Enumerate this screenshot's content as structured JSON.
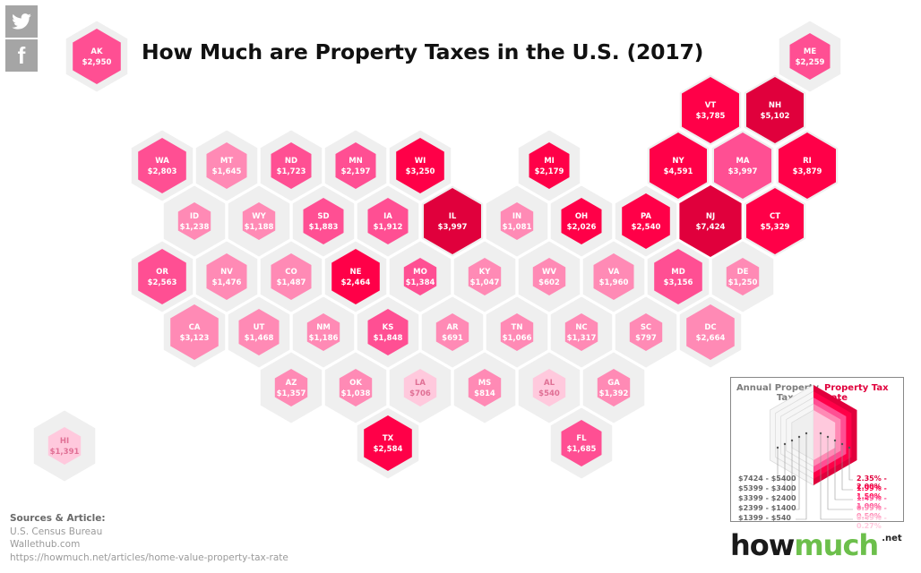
{
  "title": "How Much are Property Taxes in the U.S. (2017)",
  "social": {
    "twitter_icon": "twitter-icon",
    "facebook_icon": "facebook-icon",
    "facebook_glyph": "f"
  },
  "colors": {
    "rate_2.35_2.00": "#e0003c",
    "rate_1.99_1.50": "#ff0048",
    "rate_1.49_1.00": "#ff4f93",
    "rate_0.99_0.50": "#ff8ab5",
    "rate_0.49_0.27": "#ffc9dd",
    "cell_background": "#efefef",
    "label_light": "#ffffff",
    "label_dark": "#e07095"
  },
  "chart_data": {
    "type": "heatmap",
    "title": "How Much are Property Taxes in the U.S. (2017)",
    "description": "Hexagonal tile map; color encodes property tax rate group, inner hexagon size encodes annual property tax cost group",
    "legend": {
      "cost_title": "Annual Property Tax Cost",
      "rate_title": "Property Tax Rate",
      "cost_tiers": [
        "$7424 - $5400",
        "$5399 - $3400",
        "$3399 - $2400",
        "$2399 - $1400",
        "$1399 - $540"
      ],
      "rate_tiers": [
        "2.35% - 2.00%",
        "1.99% - 1.50%",
        "1.49% - 1.00%",
        "0.99% - 0.50%",
        "0.49% - 0.27%"
      ],
      "placement": "bottom-right"
    },
    "states": [
      {
        "abbr": "AK",
        "cost": "$2,950",
        "value": 2950,
        "rate_tier": 2,
        "row": -1,
        "col": -1
      },
      {
        "abbr": "ME",
        "cost": "$2,259",
        "value": 2259,
        "rate_tier": 2,
        "row": -1,
        "col": 10
      },
      {
        "abbr": "VT",
        "cost": "$3,785",
        "value": 3785,
        "rate_tier": 1,
        "row": 0,
        "col": 8
      },
      {
        "abbr": "NH",
        "cost": "$5,102",
        "value": 5102,
        "rate_tier": 0,
        "row": 0,
        "col": 9
      },
      {
        "abbr": "WA",
        "cost": "$2,803",
        "value": 2803,
        "rate_tier": 2,
        "row": 1,
        "col": 0
      },
      {
        "abbr": "MT",
        "cost": "$1,645",
        "value": 1645,
        "rate_tier": 3,
        "row": 1,
        "col": 1
      },
      {
        "abbr": "ND",
        "cost": "$1,723",
        "value": 1723,
        "rate_tier": 2,
        "row": 1,
        "col": 2
      },
      {
        "abbr": "MN",
        "cost": "$2,197",
        "value": 2197,
        "rate_tier": 2,
        "row": 1,
        "col": 3
      },
      {
        "abbr": "WI",
        "cost": "$3,250",
        "value": 3250,
        "rate_tier": 1,
        "row": 1,
        "col": 4
      },
      {
        "abbr": "MI",
        "cost": "$2,179",
        "value": 2179,
        "rate_tier": 1,
        "row": 1,
        "col": 6
      },
      {
        "abbr": "NY",
        "cost": "$4,591",
        "value": 4591,
        "rate_tier": 1,
        "row": 1,
        "col": 8
      },
      {
        "abbr": "MA",
        "cost": "$3,997",
        "value": 3997,
        "rate_tier": 2,
        "row": 1,
        "col": 9
      },
      {
        "abbr": "RI",
        "cost": "$3,879",
        "value": 3879,
        "rate_tier": 1,
        "row": 1,
        "col": 10
      },
      {
        "abbr": "ID",
        "cost": "$1,238",
        "value": 1238,
        "rate_tier": 3,
        "row": 2,
        "col": 0
      },
      {
        "abbr": "WY",
        "cost": "$1,188",
        "value": 1188,
        "rate_tier": 3,
        "row": 2,
        "col": 1
      },
      {
        "abbr": "SD",
        "cost": "$1,883",
        "value": 1883,
        "rate_tier": 2,
        "row": 2,
        "col": 2
      },
      {
        "abbr": "IA",
        "cost": "$1,912",
        "value": 1912,
        "rate_tier": 2,
        "row": 2,
        "col": 3
      },
      {
        "abbr": "IL",
        "cost": "$3,997",
        "value": 3997,
        "rate_tier": 0,
        "row": 2,
        "col": 4
      },
      {
        "abbr": "IN",
        "cost": "$1,081",
        "value": 1081,
        "rate_tier": 3,
        "row": 2,
        "col": 5
      },
      {
        "abbr": "OH",
        "cost": "$2,026",
        "value": 2026,
        "rate_tier": 1,
        "row": 2,
        "col": 6
      },
      {
        "abbr": "PA",
        "cost": "$2,540",
        "value": 2540,
        "rate_tier": 1,
        "row": 2,
        "col": 7
      },
      {
        "abbr": "NJ",
        "cost": "$7,424",
        "value": 7424,
        "rate_tier": 0,
        "row": 2,
        "col": 8
      },
      {
        "abbr": "CT",
        "cost": "$5,329",
        "value": 5329,
        "rate_tier": 1,
        "row": 2,
        "col": 9
      },
      {
        "abbr": "OR",
        "cost": "$2,563",
        "value": 2563,
        "rate_tier": 2,
        "row": 3,
        "col": 0
      },
      {
        "abbr": "NV",
        "cost": "$1,476",
        "value": 1476,
        "rate_tier": 3,
        "row": 3,
        "col": 1
      },
      {
        "abbr": "CO",
        "cost": "$1,487",
        "value": 1487,
        "rate_tier": 3,
        "row": 3,
        "col": 2
      },
      {
        "abbr": "NE",
        "cost": "$2,464",
        "value": 2464,
        "rate_tier": 1,
        "row": 3,
        "col": 3
      },
      {
        "abbr": "MO",
        "cost": "$1,384",
        "value": 1384,
        "rate_tier": 2,
        "row": 3,
        "col": 4
      },
      {
        "abbr": "KY",
        "cost": "$1,047",
        "value": 1047,
        "rate_tier": 3,
        "row": 3,
        "col": 5
      },
      {
        "abbr": "WV",
        "cost": "$602",
        "value": 602,
        "rate_tier": 3,
        "row": 3,
        "col": 6
      },
      {
        "abbr": "VA",
        "cost": "$1,960",
        "value": 1960,
        "rate_tier": 3,
        "row": 3,
        "col": 7
      },
      {
        "abbr": "MD",
        "cost": "$3,156",
        "value": 3156,
        "rate_tier": 2,
        "row": 3,
        "col": 8
      },
      {
        "abbr": "DE",
        "cost": "$1,250",
        "value": 1250,
        "rate_tier": 3,
        "row": 3,
        "col": 9
      },
      {
        "abbr": "CA",
        "cost": "$3,123",
        "value": 3123,
        "rate_tier": 3,
        "row": 4,
        "col": 0
      },
      {
        "abbr": "UT",
        "cost": "$1,468",
        "value": 1468,
        "rate_tier": 3,
        "row": 4,
        "col": 1
      },
      {
        "abbr": "NM",
        "cost": "$1,186",
        "value": 1186,
        "rate_tier": 3,
        "row": 4,
        "col": 2
      },
      {
        "abbr": "KS",
        "cost": "$1,848",
        "value": 1848,
        "rate_tier": 2,
        "row": 4,
        "col": 3
      },
      {
        "abbr": "AR",
        "cost": "$691",
        "value": 691,
        "rate_tier": 3,
        "row": 4,
        "col": 4
      },
      {
        "abbr": "TN",
        "cost": "$1,066",
        "value": 1066,
        "rate_tier": 3,
        "row": 4,
        "col": 5
      },
      {
        "abbr": "NC",
        "cost": "$1,317",
        "value": 1317,
        "rate_tier": 3,
        "row": 4,
        "col": 6
      },
      {
        "abbr": "SC",
        "cost": "$797",
        "value": 797,
        "rate_tier": 3,
        "row": 4,
        "col": 7
      },
      {
        "abbr": "DC",
        "cost": "$2,664",
        "value": 2664,
        "rate_tier": 3,
        "row": 4,
        "col": 8
      },
      {
        "abbr": "AZ",
        "cost": "$1,357",
        "value": 1357,
        "rate_tier": 3,
        "row": 5,
        "col": 2
      },
      {
        "abbr": "OK",
        "cost": "$1,038",
        "value": 1038,
        "rate_tier": 3,
        "row": 5,
        "col": 3
      },
      {
        "abbr": "LA",
        "cost": "$706",
        "value": 706,
        "rate_tier": 4,
        "row": 5,
        "col": 4
      },
      {
        "abbr": "MS",
        "cost": "$814",
        "value": 814,
        "rate_tier": 3,
        "row": 5,
        "col": 5
      },
      {
        "abbr": "AL",
        "cost": "$540",
        "value": 540,
        "rate_tier": 4,
        "row": 5,
        "col": 6
      },
      {
        "abbr": "GA",
        "cost": "$1,392",
        "value": 1392,
        "rate_tier": 3,
        "row": 5,
        "col": 7
      },
      {
        "abbr": "HI",
        "cost": "$1,391",
        "value": 1391,
        "rate_tier": 4,
        "row": 6,
        "col": -2
      },
      {
        "abbr": "TX",
        "cost": "$2,584",
        "value": 2584,
        "rate_tier": 1,
        "row": 6,
        "col": 3
      },
      {
        "abbr": "FL",
        "cost": "$1,685",
        "value": 1685,
        "rate_tier": 2,
        "row": 6,
        "col": 6
      }
    ]
  },
  "legend": {
    "cost_title": "Annual Property Tax Cost",
    "rate_title_line1": "Property Tax",
    "rate_title_line2": "Rate",
    "cost_title_line1": "Annual Property",
    "cost_title_line2": "Tax Cost",
    "cost_tiers": [
      "$7424 - $5400",
      "$5399 - $3400",
      "$3399 - $2400",
      "$2399 - $1400",
      "$1399 - $540"
    ],
    "rate_tiers": [
      "2.35% - 2.00%",
      "1.99% - 1.50%",
      "1.49% - 1.00%",
      "0.99% - 0.50%",
      "0.49% - 0.27%"
    ]
  },
  "sources": {
    "heading": "Sources & Article:",
    "lines": [
      "U.S. Census Bureau",
      "Wallethub.com",
      "https://howmuch.net/articles/home-value-property-tax-rate"
    ]
  },
  "logo": {
    "how": "how",
    "much": "much",
    "net": ".net"
  }
}
